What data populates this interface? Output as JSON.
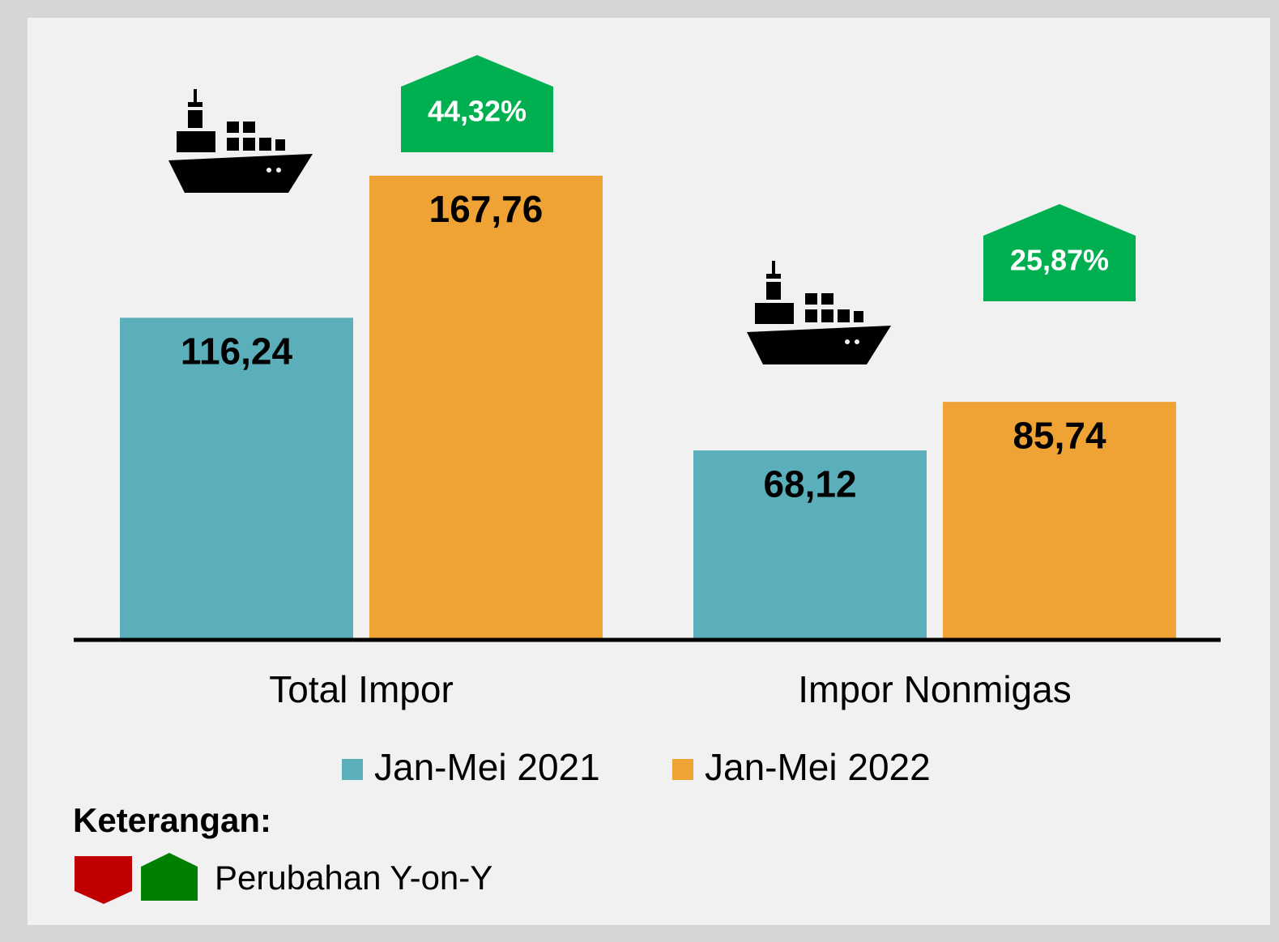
{
  "chart_data": {
    "type": "bar",
    "categories": [
      "Total Impor",
      "Impor Nonmigas"
    ],
    "series": [
      {
        "name": "Jan-Mei 2021",
        "color": "#5aafba",
        "values": [
          116.24,
          68.12
        ],
        "value_labels": [
          "116,24",
          "68,12"
        ]
      },
      {
        "name": "Jan-Mei 2022",
        "color": "#eea334",
        "values": [
          167.76,
          85.74
        ],
        "value_labels": [
          "167,76",
          "85,74"
        ]
      }
    ],
    "yoy_change": {
      "color": "#00b050",
      "values": [
        44.32,
        25.87
      ],
      "value_labels": [
        "44,32%",
        "25,87%"
      ]
    },
    "note": {
      "title": "Keterangan:",
      "label": "Perubahan Y-on-Y",
      "down_color": "#c00000",
      "up_color": "#008000"
    }
  }
}
